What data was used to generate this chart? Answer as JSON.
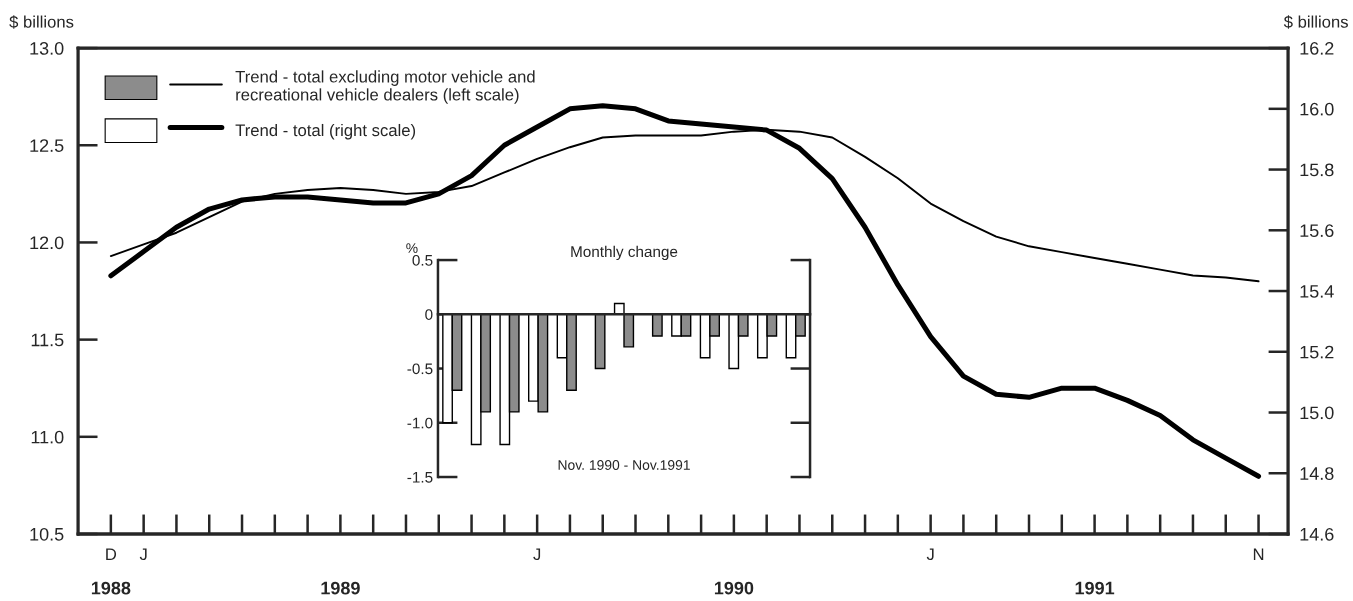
{
  "chart_data": [
    {
      "type": "line",
      "ylabel": "$ billions",
      "y2label": "$ billions",
      "legend": "top left",
      "categories": [
        "D\n1988",
        "J",
        null,
        null,
        null,
        null,
        null,
        "\n1989",
        null,
        null,
        null,
        null,
        null,
        "J",
        null,
        null,
        null,
        null,
        null,
        "\n1990",
        null,
        null,
        null,
        null,
        null,
        "J",
        null,
        null,
        null,
        null,
        "\n1991",
        null,
        null,
        null,
        null,
        "N"
      ],
      "series": [
        {
          "name": "Trend - total excluding motor vehicle and\nrecreational vehicle dealers (left scale)",
          "color": "#000000",
          "axis": "y",
          "values": [
            11.93,
            11.99,
            12.05,
            12.13,
            12.21,
            12.25,
            12.27,
            12.28,
            12.27,
            12.25,
            12.26,
            12.29,
            12.36,
            12.43,
            12.49,
            12.54,
            12.55,
            12.55,
            12.55,
            12.57,
            12.58,
            12.57,
            12.54,
            12.44,
            12.33,
            12.2,
            12.11,
            12.03,
            11.98,
            11.95,
            11.92,
            11.89,
            11.86,
            11.83,
            11.82,
            11.8
          ]
        },
        {
          "name": "Trend - total (right scale)",
          "color": "#000000",
          "axis": "y2",
          "values": [
            15.45,
            15.53,
            15.61,
            15.67,
            15.7,
            15.71,
            15.71,
            15.7,
            15.69,
            15.69,
            15.72,
            15.78,
            15.88,
            15.94,
            16.0,
            16.01,
            16.0,
            15.96,
            15.95,
            15.94,
            15.93,
            15.87,
            15.77,
            15.61,
            15.42,
            15.25,
            15.12,
            15.06,
            15.05,
            15.08,
            15.08,
            15.04,
            14.99,
            14.91,
            14.85,
            14.79
          ]
        }
      ],
      "ylim": [
        10.5,
        13.0
      ],
      "yticks": [
        10.5,
        {
          "value": 11,
          "label": "11.0"
        },
        11.5,
        {
          "value": 12,
          "label": "12.0"
        },
        12.5,
        {
          "value": 13,
          "label": "13.0"
        }
      ],
      "y2lim": [
        14.6,
        16.2
      ],
      "y2ticks": [
        14.6,
        14.8,
        {
          "value": 15,
          "label": "15.0"
        },
        15.2,
        15.4,
        15.6,
        15.8,
        {
          "value": 16,
          "label": "16.0"
        },
        16.2
      ]
    },
    {
      "type": "bar",
      "title": "Monthly change",
      "ylabel": "%",
      "tick_labels": "y",
      "categories": [
        null,
        null,
        null,
        null,
        null,
        null,
        null,
        null,
        null,
        null,
        null,
        null,
        null
      ],
      "series": [
        {
          "color": "#ffffff",
          "values": [
            -1.0,
            -1.2,
            -1.2,
            -0.8,
            -0.4,
            0,
            0.1,
            0,
            -0.2,
            -0.4,
            -0.5,
            -0.4,
            -0.4
          ]
        },
        {
          "color": "#8c8c8c",
          "values": [
            -0.7,
            -0.9,
            -0.9,
            -0.9,
            -0.7,
            -0.5,
            -0.3,
            -0.2,
            -0.2,
            -0.2,
            -0.2,
            -0.2,
            -0.2
          ]
        }
      ],
      "ylim": [
        -1.5,
        0.5
      ],
      "yticks": [
        {
          "value": -1.5,
          "label": "-1.5"
        },
        {
          "value": -1,
          "label": "-1.0"
        },
        {
          "value": -0.5,
          "label": "-0.5"
        },
        0,
        0.5
      ],
      "annotations": [
        "Nov. 1990 - Nov.1991"
      ]
    }
  ]
}
